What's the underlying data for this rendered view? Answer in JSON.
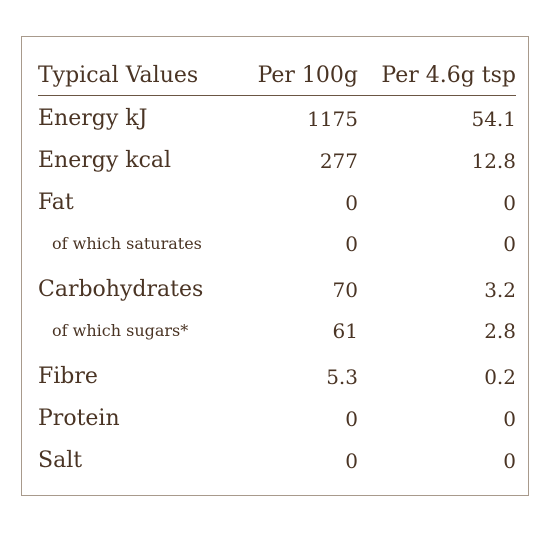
{
  "table": {
    "headers": [
      "Typical Values",
      "Per 100g",
      "Per 4.6g tsp"
    ],
    "rows": [
      {
        "label": "Energy kJ",
        "per_100g": "1175",
        "per_serving": "54.1",
        "sub": false
      },
      {
        "label": "Energy kcal",
        "per_100g": "277",
        "per_serving": "12.8",
        "sub": false
      },
      {
        "label": "Fat",
        "per_100g": "0",
        "per_serving": "0",
        "sub": false
      },
      {
        "label": "of which saturates",
        "per_100g": "0",
        "per_serving": "0",
        "sub": true
      },
      {
        "label": "Carbohydrates",
        "per_100g": "70",
        "per_serving": "3.2",
        "sub": false
      },
      {
        "label": "of which sugars*",
        "per_100g": "61",
        "per_serving": "2.8",
        "sub": true
      },
      {
        "label": "Fibre",
        "per_100g": "5.3",
        "per_serving": "0.2",
        "sub": false
      },
      {
        "label": "Protein",
        "per_100g": "0",
        "per_serving": "0",
        "sub": false
      },
      {
        "label": "Salt",
        "per_100g": "0",
        "per_serving": "0",
        "sub": false
      }
    ]
  },
  "colors": {
    "text": "#4a3424",
    "border": "#a89a8c",
    "rule": "#6b5644",
    "background": "#ffffff"
  }
}
